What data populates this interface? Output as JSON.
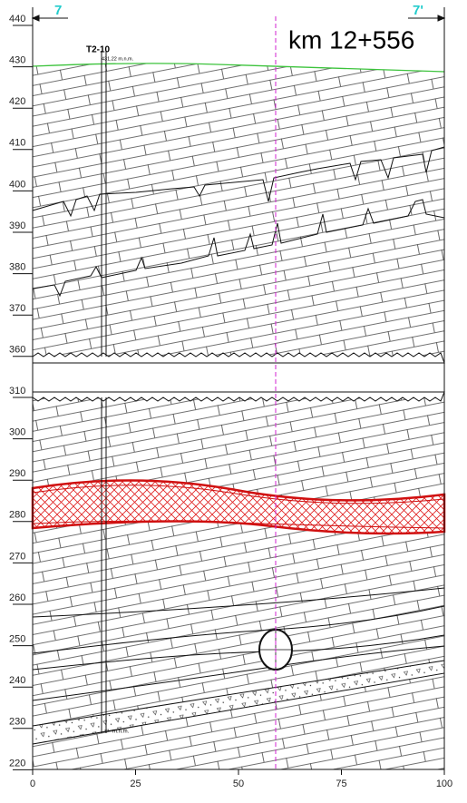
{
  "section_labels": {
    "left": "7",
    "right": "7'"
  },
  "station": "km 12+556",
  "borehole": {
    "name": "T2-10",
    "elevation": "431,22 m.n.m.",
    "bottom_label": "m.n.m."
  },
  "y_axis": {
    "upper_ticks": [
      440,
      430,
      420,
      410,
      400,
      390,
      380,
      370,
      360
    ],
    "lower_ticks": [
      310,
      300,
      290,
      280,
      270,
      260,
      250,
      240,
      230,
      220
    ]
  },
  "x_axis": {
    "ticks": [
      0,
      25,
      50,
      75,
      100
    ]
  }
}
